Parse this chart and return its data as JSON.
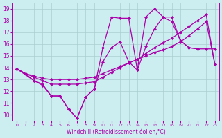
{
  "xlabel": "Windchill (Refroidissement éolien,°C)",
  "background_color": "#cdeef0",
  "grid_color": "#aacdd0",
  "line_color": "#aa00aa",
  "xlim": [
    -0.5,
    23.5
  ],
  "ylim": [
    9.5,
    19.5
  ],
  "xticks": [
    0,
    1,
    2,
    3,
    4,
    5,
    6,
    7,
    8,
    9,
    10,
    11,
    12,
    13,
    14,
    15,
    16,
    17,
    18,
    19,
    20,
    21,
    22,
    23
  ],
  "yticks": [
    10,
    11,
    12,
    13,
    14,
    15,
    16,
    17,
    18,
    19
  ],
  "line1_x": [
    0,
    1,
    2,
    3,
    4,
    5,
    6,
    7,
    8,
    9,
    10,
    11,
    12,
    13,
    14,
    15,
    16,
    17,
    18,
    19,
    20,
    21
  ],
  "line1_y": [
    13.9,
    13.5,
    12.9,
    12.5,
    11.6,
    11.6,
    10.5,
    9.7,
    11.5,
    12.2,
    15.7,
    18.3,
    18.2,
    18.2,
    13.8,
    18.3,
    19.0,
    18.3,
    17.9,
    16.3,
    15.7,
    15.6
  ],
  "line2_x": [
    0,
    1,
    2,
    3,
    4,
    5,
    6,
    7,
    8,
    9,
    10,
    11,
    12,
    13,
    14,
    15,
    16,
    17,
    18,
    19,
    20,
    21,
    22,
    23
  ],
  "line2_y": [
    13.9,
    13.5,
    13.3,
    13.1,
    13.0,
    13.0,
    13.0,
    13.0,
    13.1,
    13.2,
    13.5,
    13.8,
    14.1,
    14.4,
    14.7,
    15.0,
    15.3,
    15.5,
    15.8,
    16.2,
    16.7,
    17.3,
    17.9,
    14.3
  ],
  "line3_x": [
    0,
    1,
    2,
    3,
    4,
    5,
    6,
    7,
    8,
    9,
    10,
    11,
    12,
    13,
    14,
    15,
    16,
    17,
    18,
    19,
    20,
    21,
    22,
    23
  ],
  "line3_y": [
    13.9,
    13.5,
    13.2,
    12.9,
    12.6,
    12.6,
    12.6,
    12.6,
    12.7,
    12.8,
    13.2,
    13.6,
    14.0,
    14.4,
    14.7,
    15.2,
    15.7,
    16.1,
    16.5,
    17.0,
    17.5,
    18.0,
    18.5,
    14.3
  ],
  "line4_x": [
    0,
    2,
    3,
    4,
    5,
    6,
    7,
    8,
    9,
    10,
    11,
    12,
    13,
    14,
    15,
    16,
    17,
    18,
    19,
    20,
    21,
    22,
    23
  ],
  "line4_y": [
    13.9,
    12.9,
    12.6,
    11.6,
    11.6,
    10.5,
    9.7,
    11.5,
    12.2,
    14.5,
    15.7,
    16.2,
    14.5,
    13.8,
    15.8,
    17.3,
    18.3,
    18.3,
    16.3,
    15.7,
    15.6,
    15.6,
    15.6
  ]
}
